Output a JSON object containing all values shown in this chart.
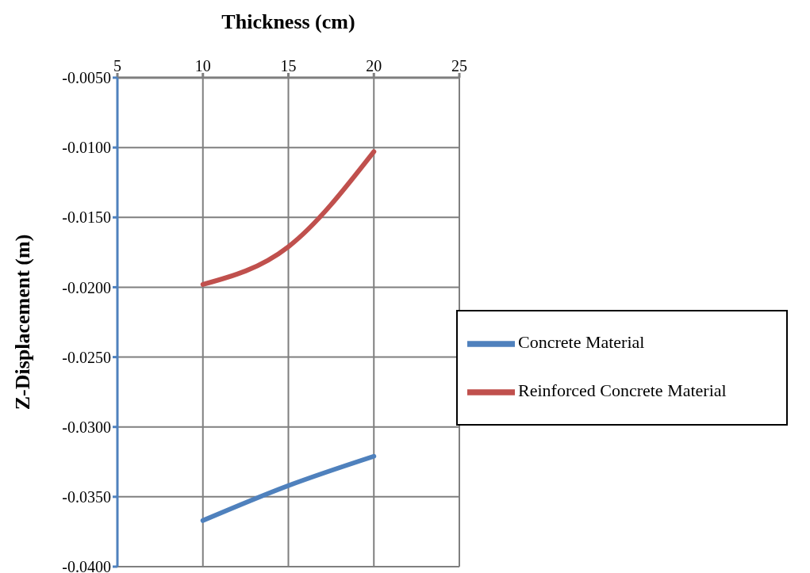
{
  "chart_data": {
    "type": "line",
    "xlabel": "Thickness  (cm)",
    "ylabel": "Z-Displacement (m)",
    "x": [
      10,
      15,
      20
    ],
    "series": [
      {
        "name": "Concrete Material",
        "color": "#4f81bd",
        "values": [
          -0.0367,
          -0.0342,
          -0.0321
        ]
      },
      {
        "name": "Reinforced Concrete Material",
        "color": "#c0504d",
        "values": [
          -0.0198,
          -0.0171,
          -0.0103
        ]
      }
    ],
    "xlim": [
      5,
      25
    ],
    "xticks": [
      5,
      10,
      15,
      20,
      25
    ],
    "ylim": [
      -0.04,
      -0.005
    ],
    "yticks": [
      {
        "value": -0.04,
        "label": "-0.0400"
      },
      {
        "value": -0.035,
        "label": "-0.0350"
      },
      {
        "value": -0.03,
        "label": "-0.0300"
      },
      {
        "value": -0.025,
        "label": "-0.0250"
      },
      {
        "value": -0.02,
        "label": "-0.0200"
      },
      {
        "value": -0.015,
        "label": "-0.0150"
      },
      {
        "value": -0.01,
        "label": "-0.0100"
      },
      {
        "value": -0.005,
        "label": "-0.0050"
      }
    ],
    "grid": true,
    "legend": "right",
    "marker": "none",
    "line_style": "solid"
  }
}
